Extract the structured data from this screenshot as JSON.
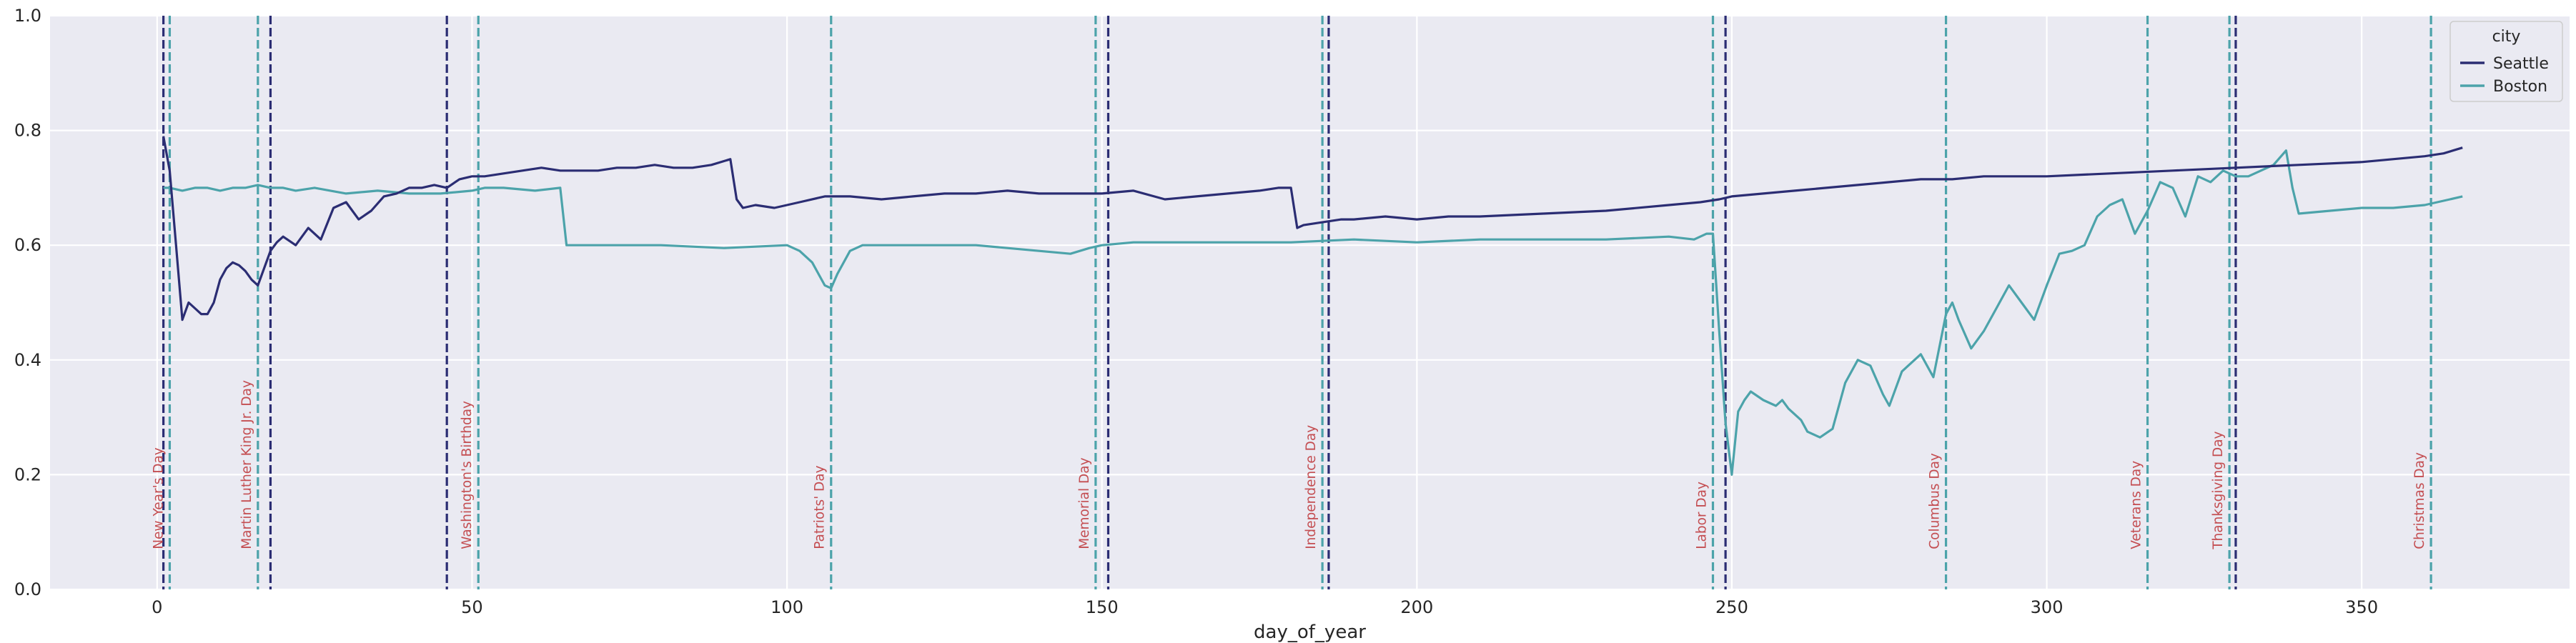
{
  "chart_data": {
    "type": "line",
    "title": "",
    "xlabel": "day_of_year",
    "ylabel": "",
    "xlim": [
      -17,
      383
    ],
    "ylim": [
      0,
      1.0
    ],
    "xticks": [
      0,
      50,
      100,
      150,
      200,
      250,
      300,
      350
    ],
    "yticks": [
      0.0,
      0.2,
      0.4,
      0.6,
      0.8,
      1.0
    ],
    "xtick_labels": [
      "0",
      "50",
      "100",
      "150",
      "200",
      "250",
      "300",
      "350"
    ],
    "ytick_labels": [
      "0.0",
      "0.2",
      "0.4",
      "0.6",
      "0.8",
      "1.0"
    ],
    "grid": true,
    "legend": {
      "title": "city",
      "position": "upper-right"
    },
    "series": [
      {
        "name": "Seattle",
        "color": "#2b2d73",
        "x": [
          1,
          2,
          3,
          4,
          5,
          6,
          7,
          8,
          9,
          10,
          11,
          12,
          13,
          14,
          15,
          16,
          17,
          18,
          19,
          20,
          22,
          24,
          26,
          28,
          30,
          32,
          34,
          36,
          38,
          40,
          42,
          44,
          46,
          48,
          50,
          52,
          55,
          58,
          61,
          64,
          67,
          70,
          73,
          76,
          79,
          82,
          85,
          88,
          91,
          92,
          93,
          95,
          98,
          102,
          106,
          110,
          115,
          120,
          125,
          130,
          135,
          140,
          145,
          150,
          155,
          160,
          165,
          170,
          175,
          178,
          180,
          181,
          182,
          185,
          188,
          190,
          195,
          200,
          205,
          210,
          220,
          230,
          240,
          245,
          248,
          250,
          255,
          260,
          265,
          270,
          275,
          280,
          285,
          290,
          300,
          310,
          320,
          330,
          340,
          350,
          360,
          363,
          366
        ],
        "y": [
          0.79,
          0.73,
          0.6,
          0.47,
          0.5,
          0.49,
          0.48,
          0.48,
          0.5,
          0.54,
          0.56,
          0.57,
          0.565,
          0.555,
          0.54,
          0.53,
          0.56,
          0.59,
          0.605,
          0.615,
          0.6,
          0.63,
          0.61,
          0.665,
          0.675,
          0.645,
          0.66,
          0.685,
          0.69,
          0.7,
          0.7,
          0.705,
          0.7,
          0.715,
          0.72,
          0.72,
          0.725,
          0.73,
          0.735,
          0.73,
          0.73,
          0.73,
          0.735,
          0.735,
          0.74,
          0.735,
          0.735,
          0.74,
          0.75,
          0.68,
          0.665,
          0.67,
          0.665,
          0.675,
          0.685,
          0.685,
          0.68,
          0.685,
          0.69,
          0.69,
          0.695,
          0.69,
          0.69,
          0.69,
          0.695,
          0.68,
          0.685,
          0.69,
          0.695,
          0.7,
          0.7,
          0.63,
          0.635,
          0.64,
          0.645,
          0.645,
          0.65,
          0.645,
          0.65,
          0.65,
          0.655,
          0.66,
          0.67,
          0.675,
          0.68,
          0.685,
          0.69,
          0.695,
          0.7,
          0.705,
          0.71,
          0.715,
          0.715,
          0.72,
          0.72,
          0.725,
          0.73,
          0.735,
          0.74,
          0.745,
          0.755,
          0.76,
          0.77
        ]
      },
      {
        "name": "Boston",
        "color": "#4ca3aa",
        "x": [
          1,
          2,
          4,
          6,
          8,
          10,
          12,
          14,
          16,
          18,
          20,
          22,
          25,
          30,
          35,
          40,
          45,
          50,
          52,
          55,
          60,
          64,
          65,
          70,
          80,
          90,
          100,
          102,
          104,
          106,
          107,
          108,
          110,
          112,
          115,
          120,
          125,
          130,
          135,
          140,
          145,
          148,
          150,
          155,
          160,
          170,
          180,
          190,
          200,
          210,
          220,
          230,
          240,
          244,
          246,
          247,
          248,
          249,
          250,
          251,
          252,
          253,
          255,
          257,
          258,
          259,
          261,
          262,
          263,
          264,
          266,
          268,
          270,
          272,
          274,
          275,
          277,
          280,
          282,
          284,
          285,
          286,
          288,
          290,
          292,
          294,
          296,
          298,
          300,
          302,
          304,
          306,
          308,
          310,
          312,
          314,
          316,
          318,
          320,
          322,
          324,
          326,
          328,
          330,
          332,
          334,
          336,
          338,
          339,
          340,
          345,
          350,
          355,
          360,
          364,
          366
        ],
        "y": [
          0.7,
          0.7,
          0.695,
          0.7,
          0.7,
          0.695,
          0.7,
          0.7,
          0.705,
          0.7,
          0.7,
          0.695,
          0.7,
          0.69,
          0.695,
          0.69,
          0.69,
          0.695,
          0.7,
          0.7,
          0.695,
          0.7,
          0.6,
          0.6,
          0.6,
          0.595,
          0.6,
          0.59,
          0.57,
          0.53,
          0.525,
          0.55,
          0.59,
          0.6,
          0.6,
          0.6,
          0.6,
          0.6,
          0.595,
          0.59,
          0.585,
          0.595,
          0.6,
          0.605,
          0.605,
          0.605,
          0.605,
          0.61,
          0.605,
          0.61,
          0.61,
          0.61,
          0.615,
          0.61,
          0.62,
          0.62,
          0.45,
          0.29,
          0.2,
          0.31,
          0.33,
          0.345,
          0.33,
          0.32,
          0.33,
          0.315,
          0.295,
          0.275,
          0.27,
          0.265,
          0.28,
          0.36,
          0.4,
          0.39,
          0.34,
          0.32,
          0.38,
          0.41,
          0.37,
          0.48,
          0.5,
          0.47,
          0.42,
          0.45,
          0.49,
          0.53,
          0.5,
          0.47,
          0.53,
          0.585,
          0.59,
          0.6,
          0.65,
          0.67,
          0.68,
          0.62,
          0.66,
          0.71,
          0.7,
          0.65,
          0.72,
          0.71,
          0.73,
          0.72,
          0.72,
          0.73,
          0.74,
          0.765,
          0.7,
          0.655,
          0.66,
          0.665,
          0.665,
          0.67,
          0.68,
          0.685
        ]
      }
    ],
    "holidays": [
      {
        "name": "New Year's Day",
        "seattle_day": 1,
        "boston_day": 2
      },
      {
        "name": "Martin Luther King Jr. Day",
        "seattle_day": 18,
        "boston_day": 16
      },
      {
        "name": "Washington's Birthday",
        "seattle_day": 46,
        "boston_day": 51
      },
      {
        "name": "Patriots' Day",
        "seattle_day": null,
        "boston_day": 107
      },
      {
        "name": "Memorial Day",
        "seattle_day": 151,
        "boston_day": 149
      },
      {
        "name": "Independence Day",
        "seattle_day": 186,
        "boston_day": 185
      },
      {
        "name": "Labor Day",
        "seattle_day": 249,
        "boston_day": 247
      },
      {
        "name": "Columbus Day",
        "seattle_day": null,
        "boston_day": 284
      },
      {
        "name": "Veterans Day",
        "seattle_day": null,
        "boston_day": 316
      },
      {
        "name": "Thanksgiving Day",
        "seattle_day": 330,
        "boston_day": 329
      },
      {
        "name": "Christmas Day",
        "seattle_day": null,
        "boston_day": 361
      }
    ]
  }
}
